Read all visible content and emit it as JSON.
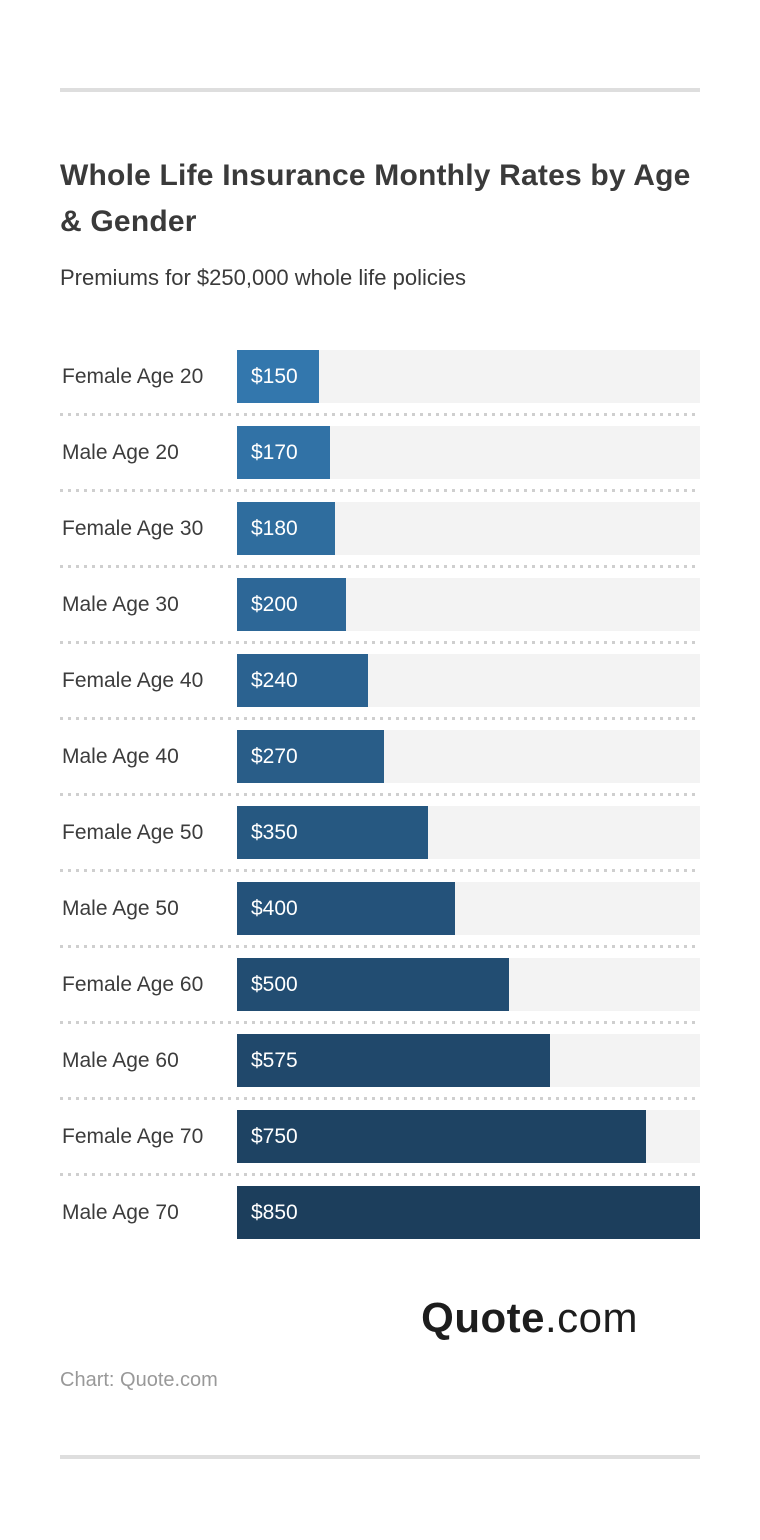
{
  "header": {
    "title": "Whole Life Insurance Monthly Rates by Age & Gender",
    "subtitle": "Premiums for $250,000 whole life policies"
  },
  "chart_data": {
    "type": "bar",
    "orientation": "horizontal",
    "title": "Whole Life Insurance Monthly Rates by Age & Gender",
    "subtitle": "Premiums for $250,000 whole life policies",
    "categories": [
      "Female Age 20",
      "Male Age 20",
      "Female Age 30",
      "Male Age 30",
      "Female Age 40",
      "Male Age 40",
      "Female Age 50",
      "Male Age 50",
      "Female Age 60",
      "Male Age 60",
      "Female Age 70",
      "Male Age 70"
    ],
    "values": [
      150,
      170,
      180,
      200,
      240,
      270,
      350,
      400,
      500,
      575,
      750,
      850
    ],
    "value_labels": [
      "$150",
      "$170",
      "$180",
      "$200",
      "$240",
      "$270",
      "$350",
      "$400",
      "$500",
      "$575",
      "$750",
      "$850"
    ],
    "xlim": [
      0,
      850
    ],
    "grid": false,
    "legend": false,
    "bar_colors": [
      "#3377ad",
      "#3172a6",
      "#2f6d9e",
      "#2d6797",
      "#2b6290",
      "#295d88",
      "#265881",
      "#24527a",
      "#224d72",
      "#20486b",
      "#1e4363",
      "#1c3e5c"
    ],
    "track_color": "#f3f3f3",
    "separator_color": "#cfcfcf",
    "value_label_color": "#ffffff",
    "category_label_color": "#3c3c3c"
  },
  "footer": {
    "logo_bold": "Quote",
    "logo_light": ".com",
    "credit": "Chart: Quote.com"
  },
  "colors": {
    "divider": "#dedede",
    "title_text": "#3a3a3a",
    "credit_text": "#999999",
    "logo_text": "#1d1d1d"
  }
}
